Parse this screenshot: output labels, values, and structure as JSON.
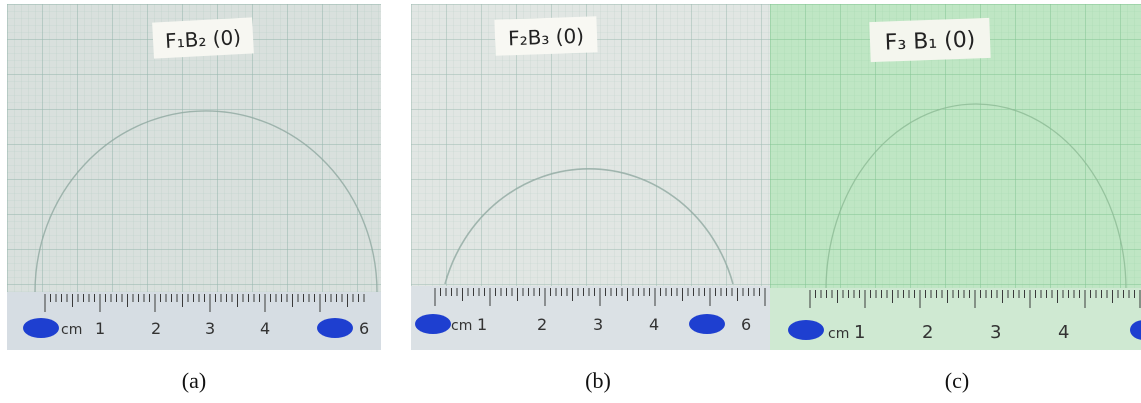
{
  "panels": [
    {
      "caption": "(a)",
      "sample_label": "F₁B₂ (0)",
      "ruler_unit": "cm",
      "ruler_numbers": [
        "1",
        "2",
        "3",
        "4",
        "6"
      ],
      "colors": {
        "paper": "#d9e0dd",
        "grid": "#a9c4bc",
        "ruler": "#d6dde3"
      }
    },
    {
      "caption": "(b)",
      "sample_label": "F₂B₃ (0)",
      "ruler_unit": "cm",
      "ruler_numbers": [
        "1",
        "2",
        "3",
        "4",
        "6"
      ],
      "colors": {
        "paper": "#e1e6e3",
        "grid": "#b4cbc3",
        "ruler": "#dbe1e5"
      }
    },
    {
      "caption": "(c)",
      "sample_label": "F₃ B₁ (0)",
      "ruler_unit": "cm",
      "ruler_numbers": [
        "1",
        "2",
        "3",
        "4"
      ],
      "colors": {
        "paper": "#bfe6c4",
        "grid": "#93cf9f",
        "ruler": "#cfe9d2"
      }
    }
  ]
}
